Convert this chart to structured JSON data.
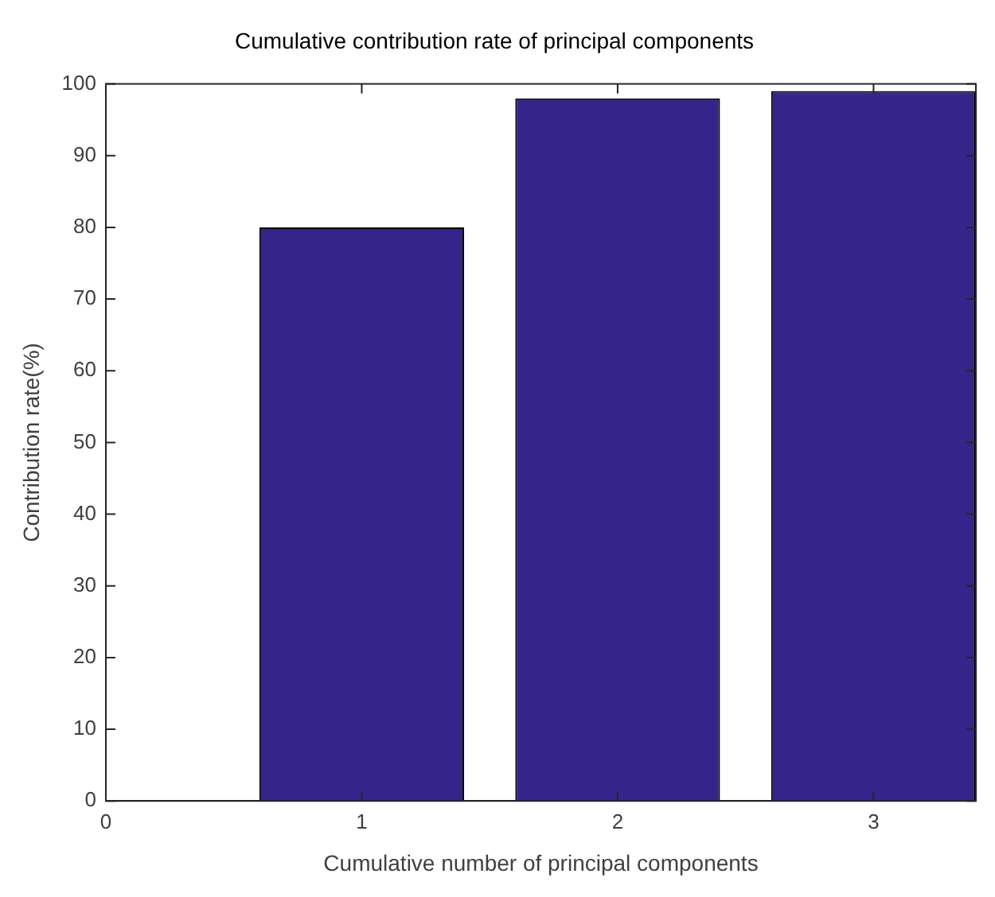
{
  "chart_data": {
    "type": "bar",
    "title": "Cumulative contribution rate of principal components",
    "xlabel": "Cumulative number of principal components",
    "ylabel": "Contribution rate(%)",
    "x": [
      0,
      1,
      2,
      3
    ],
    "values": [
      0,
      80,
      98,
      99
    ],
    "color": "#35248a",
    "xlim": [
      0,
      3.4
    ],
    "xticks": [
      0,
      1,
      2,
      3
    ],
    "ylim": [
      0,
      100
    ],
    "yticks": [
      0,
      10,
      20,
      30,
      40,
      50,
      60,
      70,
      80,
      90,
      100
    ],
    "grid": false,
    "legend": false
  }
}
